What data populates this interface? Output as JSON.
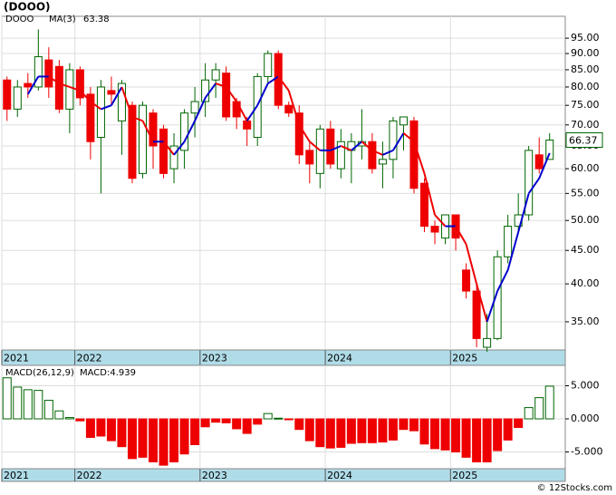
{
  "chart_data": [
    {
      "type": "candlestick",
      "title": "(DOOO)",
      "symbol": "DOOO",
      "log_scale": true,
      "grid": true,
      "up_color": "#006400",
      "down_color": "#ee0000",
      "categories": [
        null,
        null,
        null,
        null,
        null,
        null,
        null,
        null,
        null,
        null,
        null,
        null,
        null,
        null,
        null,
        null,
        null,
        null,
        null,
        null,
        null,
        null,
        null,
        null,
        null,
        null,
        null,
        null,
        null,
        null,
        null,
        null,
        null,
        null,
        null,
        null,
        null,
        null,
        null,
        null,
        null,
        null,
        null,
        null,
        null,
        null,
        null,
        null,
        null,
        null,
        null,
        null,
        null
      ],
      "open": [
        82,
        74,
        81,
        80,
        88,
        86,
        74,
        85,
        78,
        67,
        79,
        71,
        75,
        59,
        73,
        69,
        60,
        64,
        73,
        76,
        82,
        84,
        76,
        71,
        67,
        83,
        90,
        75,
        73,
        64,
        59,
        69,
        60,
        64,
        65,
        66,
        61,
        62,
        70,
        71,
        57,
        49,
        47,
        51,
        42,
        39,
        32,
        33,
        44,
        49,
        51,
        63,
        62
      ],
      "high": [
        83,
        82,
        84,
        98,
        92,
        88,
        87,
        86,
        80,
        82,
        83,
        82,
        76,
        76,
        74,
        70,
        68,
        74,
        80,
        87,
        87,
        86,
        77,
        72,
        84,
        91,
        91,
        76,
        75,
        66,
        70,
        71,
        69,
        68,
        74,
        68,
        66,
        72,
        72,
        72,
        58,
        50,
        51,
        51,
        43,
        40,
        36,
        45,
        51,
        55,
        65,
        67,
        68
      ],
      "low": [
        71,
        72,
        77,
        79,
        77,
        73,
        68,
        75,
        62,
        55,
        75,
        63,
        57,
        58,
        60,
        58,
        57,
        60,
        67,
        72,
        77,
        71,
        69,
        65,
        65,
        81,
        74,
        72,
        61,
        57,
        56,
        60,
        58,
        57,
        62,
        59,
        56,
        58,
        64,
        55,
        48,
        46,
        46,
        45,
        38,
        32,
        31.5,
        32.8,
        43,
        48,
        50,
        59,
        62
      ],
      "close": [
        74,
        80,
        80,
        89,
        80,
        74,
        85,
        77,
        66,
        80,
        78,
        81,
        58,
        75,
        65,
        59,
        65,
        73,
        76,
        82,
        85,
        72,
        72,
        69,
        83,
        90,
        75,
        73,
        63,
        61,
        69,
        61,
        66,
        66,
        66,
        60,
        62,
        71,
        72,
        56,
        49,
        48,
        51,
        47,
        39,
        33,
        33,
        44,
        49,
        51,
        64,
        60,
        66.37
      ],
      "series": [
        {
          "name": "MA(3)",
          "up_color": "#0000cc",
          "down_color": "#ee0000",
          "values": [
            null,
            null,
            78,
            83,
            83,
            81,
            80,
            79,
            76,
            74,
            75,
            80,
            72,
            71,
            66,
            66,
            63,
            66,
            71,
            77,
            81,
            80,
            76,
            71,
            75,
            81,
            83,
            79,
            70,
            66,
            64,
            64,
            65,
            64,
            66,
            64,
            63,
            64,
            68,
            66,
            59,
            51,
            49,
            49,
            46,
            40,
            35,
            39,
            42,
            48,
            55,
            58,
            63.38
          ]
        }
      ],
      "xlim": [
        -0.5,
        53.5
      ],
      "xticks": [
        {
          "value": -0.5,
          "label": "2021"
        },
        {
          "value": 6.5,
          "label": "2022"
        },
        {
          "value": 18.5,
          "label": "2023"
        },
        {
          "value": 30.5,
          "label": "2024"
        },
        {
          "value": 42.5,
          "label": "2025"
        }
      ],
      "ylim": [
        31.7,
        102.6
      ],
      "yticks": [
        {
          "value": 35,
          "label": "35.00"
        },
        {
          "value": 40,
          "label": "40.00"
        },
        {
          "value": 45,
          "label": "45.00"
        },
        {
          "value": 50,
          "label": "50.00"
        },
        {
          "value": 55,
          "label": "55.00"
        },
        {
          "value": 60,
          "label": "60.00"
        },
        {
          "value": 65,
          "label": "65.00"
        },
        {
          "value": 70,
          "label": "70.00"
        },
        {
          "value": 75,
          "label": "75.00"
        },
        {
          "value": 80,
          "label": "80.00"
        },
        {
          "value": 85,
          "label": "85.00"
        },
        {
          "value": 90,
          "label": "90.00"
        },
        {
          "value": 95,
          "label": "95.00"
        }
      ]
    },
    {
      "type": "bar",
      "grid": true,
      "name": "MACD(26,12,9)",
      "current_label": "MACD:4.939",
      "up_color": "#006400",
      "down_color": "#ee0000",
      "categories": [
        null,
        null,
        null,
        null,
        null,
        null,
        null,
        null,
        null,
        null,
        null,
        null,
        null,
        null,
        null,
        null,
        null,
        null,
        null,
        null,
        null,
        null,
        null,
        null,
        null,
        null,
        null,
        null,
        null,
        null,
        null,
        null,
        null,
        null,
        null,
        null,
        null,
        null,
        null,
        null,
        null,
        null,
        null,
        null,
        null,
        null,
        null,
        null,
        null,
        null,
        null,
        null,
        null
      ],
      "values": [
        6.2,
        4.8,
        4.4,
        4.3,
        2.8,
        1.2,
        0.2,
        -0.3,
        -2.8,
        -2.6,
        -3.3,
        -4.2,
        -6,
        -5.8,
        -6.5,
        -7,
        -6.5,
        -5.3,
        -3.9,
        -1.2,
        -0.5,
        -0.6,
        -1.5,
        -2.2,
        -0.8,
        0.8,
        0.1,
        -0.1,
        -1.6,
        -3.3,
        -4.2,
        -4.4,
        -4.3,
        -3.7,
        -3.6,
        -3.6,
        -3.5,
        -3.2,
        -1.6,
        -1.8,
        -3.8,
        -4.5,
        -4.7,
        -5,
        -5.8,
        -6.5,
        -6.5,
        -4.8,
        -3.2,
        -1.3,
        1.7,
        3.2,
        4.939
      ],
      "xlim": [
        -0.5,
        53.5
      ],
      "xticks": [
        {
          "value": -0.5,
          "label": "2021"
        },
        {
          "value": 6.5,
          "label": "2022"
        },
        {
          "value": 18.5,
          "label": "2023"
        },
        {
          "value": 30.5,
          "label": "2024"
        },
        {
          "value": 42.5,
          "label": "2025"
        }
      ],
      "ylim": [
        -7.53,
        8.08
      ],
      "yticks": [
        {
          "value": -5,
          "label": "-5.000"
        },
        {
          "value": 0,
          "label": "0.000"
        },
        {
          "value": 5,
          "label": "5.000"
        }
      ]
    }
  ],
  "footer": "© 12Stocks.com"
}
